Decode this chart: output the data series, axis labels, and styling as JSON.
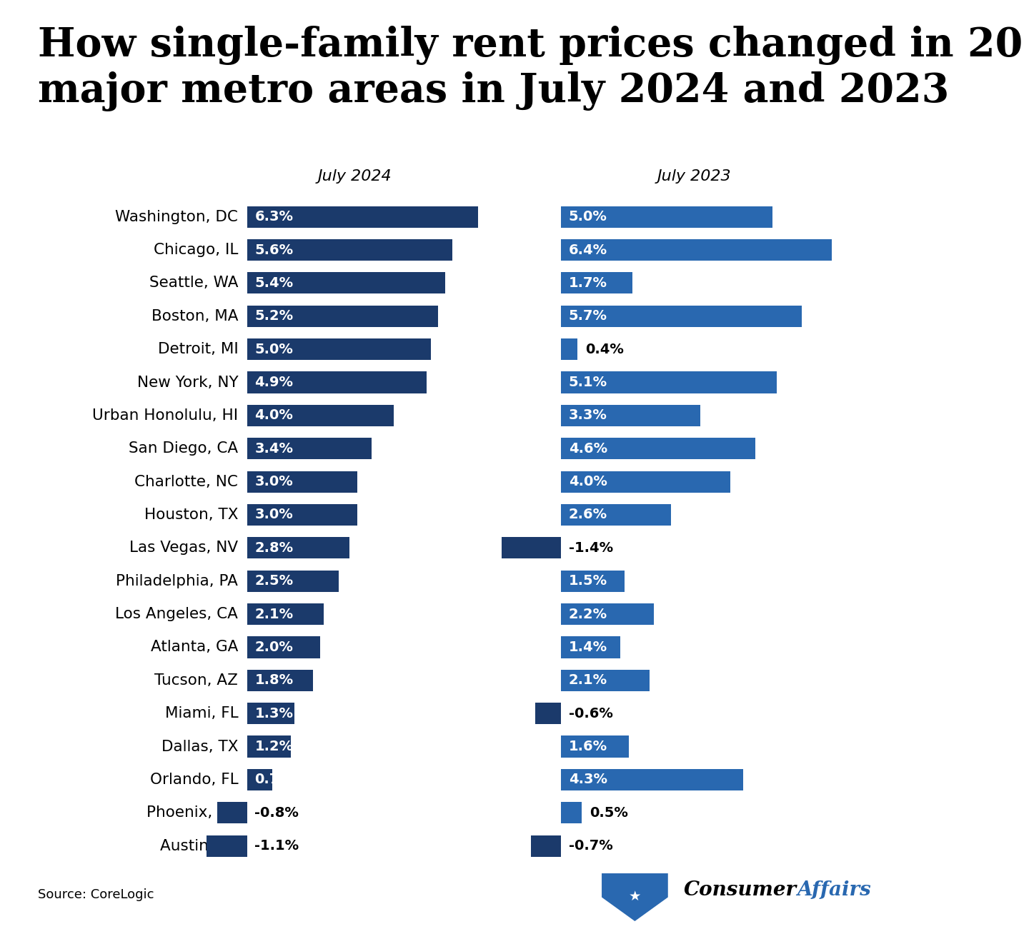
{
  "title_line1": "How single-family rent prices changed in 20",
  "title_line2": "major metro areas in July 2024 and 2023",
  "col_header_2024": "July 2024",
  "col_header_2023": "July 2023",
  "source": "Source: CoreLogic",
  "cities": [
    "Washington, DC",
    "Chicago, IL",
    "Seattle, WA",
    "Boston, MA",
    "Detroit, MI",
    "New York, NY",
    "Urban Honolulu, HI",
    "San Diego, CA",
    "Charlotte, NC",
    "Houston, TX",
    "Las Vegas, NV",
    "Philadelphia, PA",
    "Los Angeles, CA",
    "Atlanta, GA",
    "Tucson, AZ",
    "Miami, FL",
    "Dallas, TX",
    "Orlando, FL",
    "Phoenix, AZ",
    "Austin, TX"
  ],
  "values_2024": [
    6.3,
    5.6,
    5.4,
    5.2,
    5.0,
    4.9,
    4.0,
    3.4,
    3.0,
    3.0,
    2.8,
    2.5,
    2.1,
    2.0,
    1.8,
    1.3,
    1.2,
    0.7,
    -0.8,
    -1.1
  ],
  "values_2023": [
    5.0,
    6.4,
    1.7,
    5.7,
    0.4,
    5.1,
    3.3,
    4.6,
    4.0,
    2.6,
    -1.4,
    1.5,
    2.2,
    1.4,
    2.1,
    -0.6,
    1.6,
    4.3,
    0.5,
    -0.7
  ],
  "color_2024": "#1b3a6b",
  "color_2023_pos": "#2968b0",
  "color_2023_neg": "#1b3a6b",
  "background_color": "#ffffff",
  "title_fontsize": 40,
  "label_fontsize": 15.5,
  "value_fontsize": 14,
  "header_fontsize": 16
}
